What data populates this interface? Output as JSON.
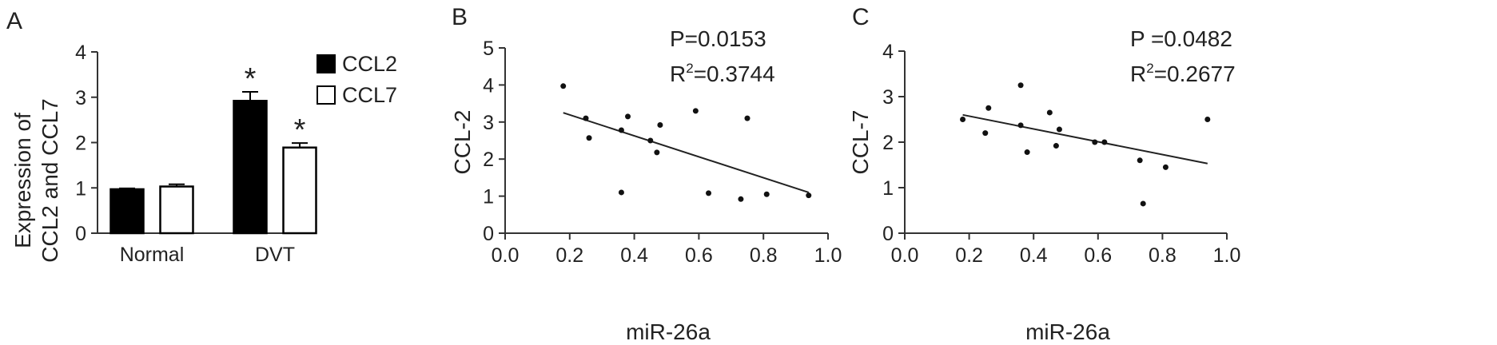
{
  "panels": [
    {
      "label": "A",
      "chart_data": {
        "type": "bar",
        "categories": [
          "Normal",
          "DVT"
        ],
        "series": [
          {
            "name": "CCL2",
            "values": [
              0.97,
              2.92
            ],
            "errors": [
              0.02,
              0.2
            ],
            "color": "#000000"
          },
          {
            "name": "CCL7",
            "values": [
              1.03,
              1.89
            ],
            "errors": [
              0.05,
              0.1
            ],
            "color": "#ffffff"
          }
        ],
        "significance": [
          {
            "category": "DVT",
            "series": "CCL2",
            "mark": "*"
          },
          {
            "category": "DVT",
            "series": "CCL7",
            "mark": "*"
          }
        ],
        "ylabel_line1": "Expression of",
        "ylabel_line2": "CCL2 and CCL7",
        "xlabel": "",
        "ylim": [
          0,
          4
        ],
        "yticks": [
          0,
          1,
          2,
          3,
          4
        ],
        "legend_position": "top-right"
      }
    },
    {
      "label": "B",
      "chart_data": {
        "type": "scatter",
        "xlabel": "miR-26a",
        "ylabel": "CCL-2",
        "xlim": [
          0.0,
          1.0
        ],
        "ylim": [
          0,
          5
        ],
        "xticks": [
          "0.0",
          "0.2",
          "0.4",
          "0.6",
          "0.8",
          "1.0"
        ],
        "yticks": [
          0,
          1,
          2,
          3,
          4,
          5
        ],
        "points": [
          [
            0.18,
            3.97
          ],
          [
            0.25,
            3.1
          ],
          [
            0.26,
            2.57
          ],
          [
            0.36,
            2.78
          ],
          [
            0.36,
            1.1
          ],
          [
            0.38,
            3.15
          ],
          [
            0.45,
            2.5
          ],
          [
            0.47,
            2.18
          ],
          [
            0.48,
            2.92
          ],
          [
            0.59,
            3.3
          ],
          [
            0.63,
            1.08
          ],
          [
            0.73,
            0.92
          ],
          [
            0.75,
            3.1
          ],
          [
            0.81,
            1.05
          ],
          [
            0.94,
            1.02
          ]
        ],
        "fit_line": [
          [
            0.18,
            3.25
          ],
          [
            0.94,
            1.1
          ]
        ],
        "p_text": "P=0.0153",
        "r2_prefix": "R",
        "r2_sup": "2",
        "r2_value": "=0.3744"
      }
    },
    {
      "label": "C",
      "chart_data": {
        "type": "scatter",
        "xlabel": "miR-26a",
        "ylabel": "CCL-7",
        "xlim": [
          0.0,
          1.0
        ],
        "ylim": [
          0,
          4
        ],
        "xticks": [
          "0.0",
          "0.2",
          "0.4",
          "0.6",
          "0.8",
          "1.0"
        ],
        "yticks": [
          0,
          1,
          2,
          3,
          4
        ],
        "points": [
          [
            0.18,
            2.5
          ],
          [
            0.25,
            2.2
          ],
          [
            0.26,
            2.75
          ],
          [
            0.36,
            3.25
          ],
          [
            0.36,
            2.37
          ],
          [
            0.38,
            1.78
          ],
          [
            0.45,
            2.65
          ],
          [
            0.47,
            1.92
          ],
          [
            0.48,
            2.28
          ],
          [
            0.59,
            2.0
          ],
          [
            0.62,
            2.0
          ],
          [
            0.73,
            1.6
          ],
          [
            0.74,
            0.65
          ],
          [
            0.81,
            1.45
          ],
          [
            0.94,
            2.5
          ]
        ],
        "fit_line": [
          [
            0.18,
            2.6
          ],
          [
            0.94,
            1.53
          ]
        ],
        "p_text": "P =0.0482",
        "r2_prefix": "R",
        "r2_sup": "2",
        "r2_value": "=0.2677"
      }
    }
  ]
}
